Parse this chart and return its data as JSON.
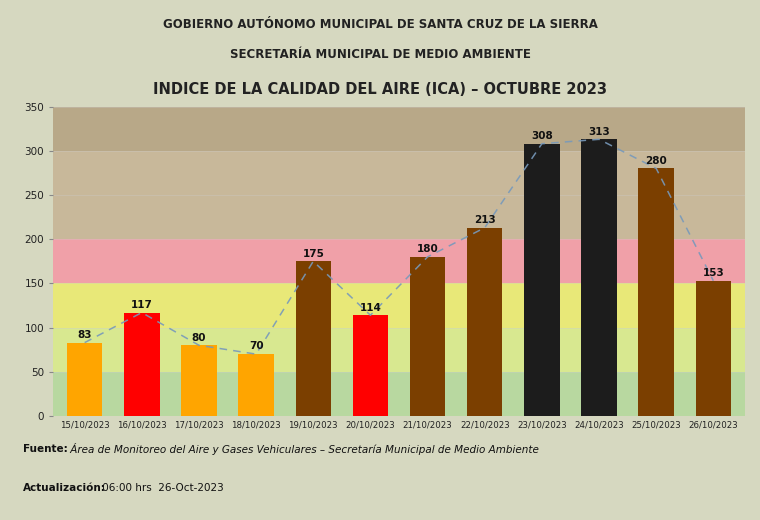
{
  "title": "INDICE DE LA CALIDAD DEL AIRE (ICA) – OCTUBRE 2023",
  "categories": [
    "15/10/2023",
    "16/10/2023",
    "17/10/2023",
    "18/10/2023",
    "19/10/2023",
    "20/10/2023",
    "21/10/2023",
    "22/10/2023",
    "23/10/2023",
    "24/10/2023",
    "25/10/2023",
    "26/10/2023"
  ],
  "values": [
    83,
    117,
    80,
    70,
    175,
    114,
    180,
    213,
    308,
    313,
    280,
    153
  ],
  "bar_colors": [
    "#FFA500",
    "#FF0000",
    "#FFA500",
    "#FFA500",
    "#7B3F00",
    "#FF0000",
    "#7B3F00",
    "#7B3F00",
    "#1C1C1C",
    "#1C1C1C",
    "#7B3F00",
    "#7B3F00"
  ],
  "ylim": [
    0,
    350
  ],
  "yticks": [
    0,
    50,
    100,
    150,
    200,
    250,
    300,
    350
  ],
  "fig_bg_color": "#d6d8c0",
  "zone_colors": [
    "#b8d8a0",
    "#d8e890",
    "#e8e878",
    "#f0a0a8",
    "#c8b89a",
    "#b8a888"
  ],
  "zone_limits": [
    0,
    50,
    100,
    150,
    200,
    300,
    350
  ],
  "trend_color": "#7799bb",
  "source_bold": "Fuente:",
  "source_italic": " Área de Monitoreo del Aire y Gases Vehiculares – Secretaría Municipal de Medio Ambiente",
  "update_bold": "Actualización:",
  "update_rest": " 06:00 hrs  26-Oct-2023",
  "header_line1": "GOBIERNO AUTÓNOMO MUNICIPAL DE SANTA CRUZ DE LA SIERRA",
  "header_line2": "SECRETARÍA MUNICIPAL DE MEDIO AMBIENTE"
}
